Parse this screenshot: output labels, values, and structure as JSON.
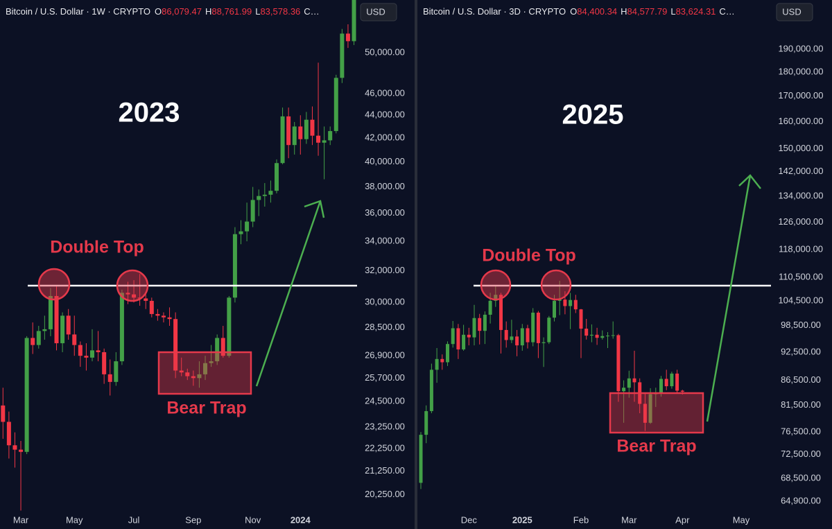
{
  "chart_data": [
    {
      "type": "candlestick",
      "title": "Bitcoin / U.S. Dollar · 1W · CRYPTO",
      "ohlc_labels": [
        "O",
        "H",
        "L",
        "C…"
      ],
      "ohlc_values": [
        "86,079.47",
        "88,761.99",
        "83,578.36"
      ],
      "currency": "USD",
      "annotations": {
        "year": "2023",
        "double_top": "Double Top",
        "bear_trap": "Bear Trap"
      },
      "up_color": "#43a047",
      "down_color": "#f23645",
      "log_scale": true,
      "categories": [
        null,
        null,
        null,
        "Mar",
        null,
        null,
        null,
        null,
        null,
        null,
        null,
        null,
        "May",
        null,
        null,
        null,
        null,
        null,
        null,
        null,
        null,
        null,
        "Jul",
        null,
        null,
        null,
        null,
        null,
        null,
        null,
        null,
        null,
        "Sep",
        null,
        null,
        null,
        null,
        null,
        null,
        null,
        null,
        null,
        "Nov",
        null,
        null,
        null,
        null,
        null,
        null,
        null,
        "2024",
        null,
        null,
        null,
        null,
        null,
        null,
        null,
        null,
        null
      ],
      "open": [
        24300,
        23500,
        22400,
        22200,
        22100,
        27900,
        27500,
        28300,
        28400,
        30400,
        27600,
        29200,
        28100,
        27500,
        26900,
        26800,
        27200,
        27100,
        25900,
        25500,
        26600,
        30600,
        30500,
        30300,
        30250,
        30100,
        29300,
        29200,
        29100,
        29000,
        26100,
        26000,
        25800,
        25700,
        25900,
        26500,
        26600,
        27900,
        26900,
        30300,
        34500,
        34700,
        35400,
        37000,
        37300,
        37400,
        37700,
        39900,
        43900,
        41400,
        43000,
        41900,
        43600,
        42200,
        41600,
        41800,
        42600,
        47500,
        52000,
        51200
      ],
      "high": [
        25200,
        24000,
        23000,
        22600,
        28000,
        28800,
        28600,
        29200,
        30900,
        31000,
        29400,
        29600,
        29200,
        27700,
        27600,
        28400,
        28300,
        27300,
        26700,
        27100,
        30800,
        31300,
        31400,
        31800,
        30600,
        30300,
        29600,
        29400,
        29700,
        29400,
        26800,
        26200,
        26100,
        26600,
        26900,
        27500,
        28100,
        28600,
        30400,
        35000,
        35500,
        36800,
        38000,
        37800,
        38300,
        38500,
        40200,
        44700,
        44700,
        43400,
        44000,
        44300,
        44800,
        49000,
        43000,
        43000,
        47800,
        52500,
        53000,
        57000
      ],
      "low": [
        22700,
        21800,
        21400,
        19600,
        22000,
        27000,
        27300,
        27800,
        28000,
        27200,
        27100,
        27800,
        26900,
        26300,
        26100,
        26600,
        26600,
        25400,
        24800,
        25300,
        26400,
        29900,
        30000,
        29800,
        29600,
        29100,
        28900,
        28800,
        28600,
        25700,
        25800,
        25600,
        25300,
        25200,
        25600,
        26300,
        26400,
        26800,
        26800,
        30000,
        33800,
        34000,
        35000,
        35800,
        36500,
        36800,
        37500,
        39800,
        40300,
        40600,
        40600,
        41500,
        41400,
        40500,
        38600,
        41400,
        42400,
        47000,
        50500,
        50800
      ],
      "close": [
        23500,
        22400,
        22200,
        22100,
        27900,
        27500,
        28300,
        28400,
        30400,
        27600,
        29200,
        28100,
        27500,
        26900,
        26800,
        27200,
        27100,
        25900,
        25500,
        26600,
        30600,
        30500,
        30300,
        30250,
        30100,
        29300,
        29200,
        29100,
        29000,
        26100,
        26000,
        25800,
        25700,
        25900,
        26500,
        26600,
        27900,
        26900,
        30300,
        34500,
        34700,
        35400,
        37000,
        37300,
        37400,
        37700,
        39900,
        43900,
        41400,
        43000,
        41900,
        43600,
        42200,
        41600,
        41800,
        42600,
        47500,
        52000,
        51200,
        56500
      ],
      "ylim": [
        19500,
        55700
      ],
      "yticks": [
        {
          "value": 20250,
          "label": "20,250.00"
        },
        {
          "value": 21250,
          "label": "21,250.00"
        },
        {
          "value": 22250,
          "label": "22,250.00"
        },
        {
          "value": 23250,
          "label": "23,250.00"
        },
        {
          "value": 24500,
          "label": "24,500.00"
        },
        {
          "value": 25700,
          "label": "25,700.00"
        },
        {
          "value": 26900,
          "label": "26,900.00"
        },
        {
          "value": 28500,
          "label": "28,500.00"
        },
        {
          "value": 30000,
          "label": "30,000.00"
        },
        {
          "value": 32000,
          "label": "32,000.00"
        },
        {
          "value": 34000,
          "label": "34,000.00"
        },
        {
          "value": 36000,
          "label": "36,000.00"
        },
        {
          "value": 38000,
          "label": "38,000.00"
        },
        {
          "value": 40000,
          "label": "40,000.00"
        },
        {
          "value": 42000,
          "label": "42,000.00"
        },
        {
          "value": 44000,
          "label": "44,000.00"
        },
        {
          "value": 46000,
          "label": "46,000.00"
        },
        {
          "value": 50000,
          "label": "50,000.00"
        }
      ]
    },
    {
      "type": "candlestick",
      "title": "Bitcoin / U.S. Dollar · 3D · CRYPTO",
      "ohlc_labels": [
        "O",
        "H",
        "L",
        "C…"
      ],
      "ohlc_values": [
        "84,400.34",
        "84,577.79",
        "83,624.31"
      ],
      "currency": "USD",
      "annotations": {
        "year": "2025",
        "double_top": "Double Top",
        "bear_trap": "Bear Trap"
      },
      "up_color": "#43a047",
      "down_color": "#f23645",
      "log_scale": true,
      "categories": [
        null,
        null,
        null,
        null,
        null,
        null,
        null,
        null,
        null,
        "Dec",
        null,
        null,
        null,
        null,
        null,
        null,
        null,
        null,
        null,
        "2025",
        null,
        null,
        null,
        null,
        null,
        null,
        null,
        null,
        null,
        null,
        "Feb",
        null,
        null,
        null,
        null,
        null,
        null,
        null,
        null,
        "Mar",
        null,
        null,
        null,
        null,
        null,
        null,
        null,
        null,
        null,
        "Apr",
        null,
        null,
        null,
        null,
        null,
        null,
        null,
        null,
        null,
        null,
        "May"
      ],
      "open": [
        67800,
        76000,
        80400,
        88700,
        91000,
        90300,
        94300,
        97900,
        93100,
        96400,
        95800,
        100300,
        97300,
        101100,
        104500,
        106000,
        97500,
        95200,
        96000,
        94000,
        97900,
        94700,
        101600,
        94500,
        94700,
        100400,
        104500,
        104800,
        103200,
        104700,
        102400,
        97800,
        96200,
        96400,
        95700,
        96100,
        96200,
        96300,
        84300,
        85000,
        86900,
        86100,
        81800,
        78200,
        83700,
        84000,
        86800,
        85300,
        87900,
        84400.34,
        null,
        null,
        null,
        null,
        null,
        null,
        null,
        null,
        null,
        null,
        null
      ],
      "high": [
        76500,
        81500,
        90000,
        93400,
        92000,
        94900,
        99600,
        98900,
        98700,
        98000,
        103500,
        101300,
        101900,
        106500,
        108300,
        106500,
        99500,
        99900,
        97500,
        98900,
        98700,
        102700,
        102000,
        95800,
        100800,
        106000,
        109600,
        106900,
        106500,
        106000,
        102500,
        100100,
        98800,
        98000,
        97400,
        97000,
        99500,
        96600,
        86500,
        88500,
        92800,
        86900,
        84000,
        84900,
        85000,
        87400,
        88700,
        88300,
        88700,
        84577.79,
        null,
        null,
        null,
        null,
        null,
        null,
        null,
        null,
        null,
        null,
        null
      ],
      "low": [
        66800,
        74500,
        80000,
        86000,
        88700,
        89500,
        93500,
        91000,
        92800,
        94000,
        94000,
        94200,
        94300,
        99000,
        103000,
        92200,
        93500,
        94500,
        91600,
        92800,
        93300,
        93800,
        91200,
        89300,
        94300,
        99500,
        101000,
        101200,
        97700,
        101500,
        91200,
        95300,
        94700,
        94100,
        95300,
        93400,
        95500,
        82200,
        78200,
        83000,
        82200,
        80000,
        76700,
        78000,
        81200,
        83200,
        84500,
        84800,
        83800,
        83624.31,
        null,
        null,
        null,
        null,
        null,
        null,
        null,
        null,
        null,
        null,
        null
      ],
      "close": [
        76000,
        80400,
        88700,
        91000,
        90300,
        94300,
        97900,
        93100,
        96400,
        95800,
        100300,
        97300,
        101100,
        104500,
        106000,
        97500,
        95200,
        96000,
        94000,
        97900,
        94700,
        101600,
        94500,
        94700,
        100400,
        104500,
        104800,
        103200,
        104700,
        102400,
        97800,
        96200,
        96400,
        95700,
        96100,
        96200,
        96300,
        84300,
        85000,
        86900,
        86100,
        81800,
        78200,
        83700,
        84000,
        86800,
        85300,
        87900,
        84400,
        84200,
        null,
        null,
        null,
        null,
        null,
        null,
        null,
        null,
        null,
        null,
        null
      ],
      "ylim": [
        63100,
        213600
      ],
      "yticks": [
        {
          "value": 64900,
          "label": "64,900.00"
        },
        {
          "value": 68500,
          "label": "68,500.00"
        },
        {
          "value": 72500,
          "label": "72,500.00"
        },
        {
          "value": 76500,
          "label": "76,500.00"
        },
        {
          "value": 81500,
          "label": "81,500.00"
        },
        {
          "value": 86500,
          "label": "86,500.00"
        },
        {
          "value": 92500,
          "label": "92,500.00"
        },
        {
          "value": 98500,
          "label": "98,500.00"
        },
        {
          "value": 104500,
          "label": "104,500.00"
        },
        {
          "value": 110500,
          "label": "110,500.00"
        },
        {
          "value": 118000,
          "label": "118,000.00"
        },
        {
          "value": 126000,
          "label": "126,000.00"
        },
        {
          "value": 134000,
          "label": "134,000.00"
        },
        {
          "value": 142000,
          "label": "142,000.00"
        },
        {
          "value": 150000,
          "label": "150,000.00"
        },
        {
          "value": 160000,
          "label": "160,000.00"
        },
        {
          "value": 170000,
          "label": "170,000.00"
        },
        {
          "value": 180000,
          "label": "180,000.00"
        },
        {
          "value": 190000,
          "label": "190,000.00"
        }
      ]
    }
  ]
}
